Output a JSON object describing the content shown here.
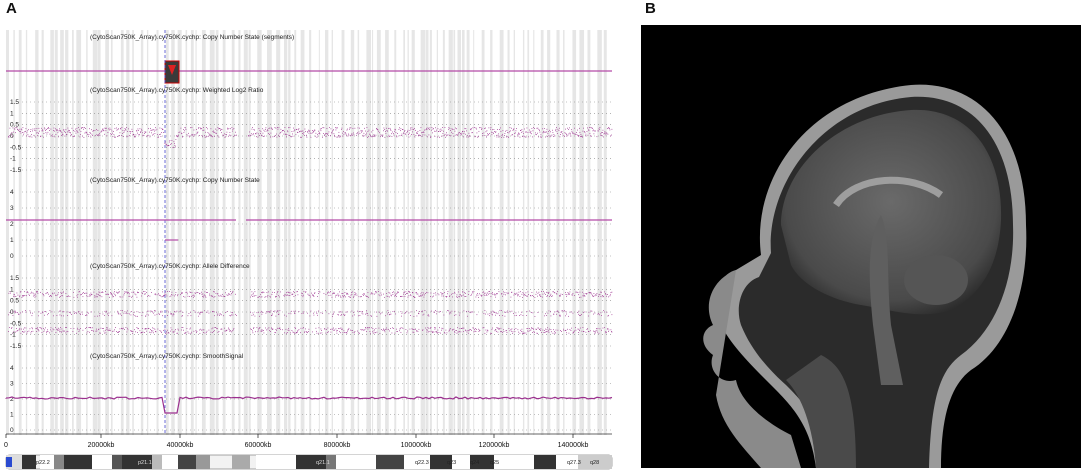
{
  "panel_labels": {
    "a": "A",
    "b": "B"
  },
  "colors": {
    "trace": "#9b2f8e",
    "line": "#b44aa6",
    "grid": "#d9d9d9",
    "axis": "#333333"
  },
  "tracks": [
    {
      "title": "(CytoScan750K_Array).cy750K.cychp: Copy Number State (segments)",
      "ticks": []
    },
    {
      "title": "(CytoScan750K_Array).cy750K.cychp: Weighted Log2 Ratio",
      "ticks": [
        "1.5",
        "1",
        "0.5",
        "0",
        "-0.5",
        "-1",
        "-1.5"
      ]
    },
    {
      "title": "(CytoScan750K_Array).cy750K.cychp: Copy Number State",
      "ticks": [
        "4",
        "3",
        "2",
        "1",
        "0"
      ]
    },
    {
      "title": "(CytoScan750K_Array).cy750K.cychp: Allele Difference",
      "ticks": [
        "1.5",
        "1",
        "0.5",
        "0",
        "-0.5",
        "-1",
        "-1.5"
      ]
    },
    {
      "title": "(CytoScan750K_Array).cy750K.cychp: SmoothSignal",
      "ticks": [
        "4",
        "3",
        "2",
        "1",
        "0"
      ]
    }
  ],
  "x_axis": {
    "labels": [
      "0",
      "20000kb",
      "40000kb",
      "60000kb",
      "80000kb",
      "100000kb",
      "120000kb",
      "140000kb"
    ]
  },
  "ideogram_bands": [
    "p22.2",
    "p21.1",
    "q21.1",
    "q22.3",
    "q23",
    "q24",
    "q25",
    "q27.3",
    "q28"
  ],
  "mri": {
    "description_icon": "brain-mri-sagittal"
  }
}
